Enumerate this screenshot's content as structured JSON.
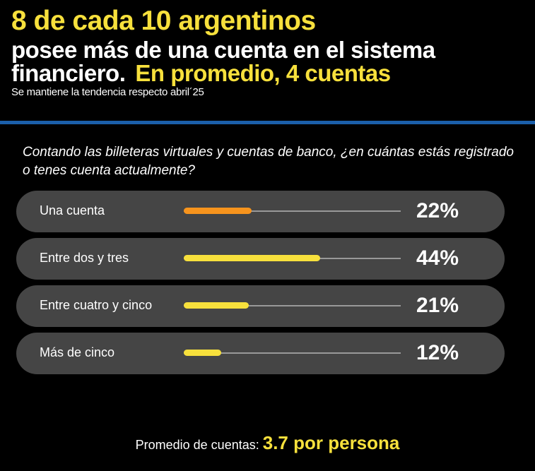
{
  "header": {
    "title": "8 de cada 10 argentinos",
    "subtitle_white": "posee más de una cuenta en el sistema financiero.",
    "subtitle_yellow": "En promedio, 4 cuentas",
    "note": "Se mantiene la tendencia respecto abril´25"
  },
  "chart_data": {
    "type": "bar",
    "title": "Contando las billeteras virtuales y cuentas de banco, ¿en cuántas estás registrado o tenes cuenta actualmente?",
    "categories": [
      "Una cuenta",
      "Entre dos y tres",
      "Entre cuatro y cinco",
      "Más de cinco"
    ],
    "values": [
      22,
      44,
      21,
      12
    ],
    "value_labels": [
      "22%",
      "44%",
      "21%",
      "12%"
    ],
    "colors": [
      "#f7941d",
      "#f7e03c",
      "#f7e03c",
      "#f7e03c"
    ],
    "unit": "%"
  },
  "footer": {
    "label": "Promedio de cuentas:",
    "value": "3.7 por persona"
  }
}
